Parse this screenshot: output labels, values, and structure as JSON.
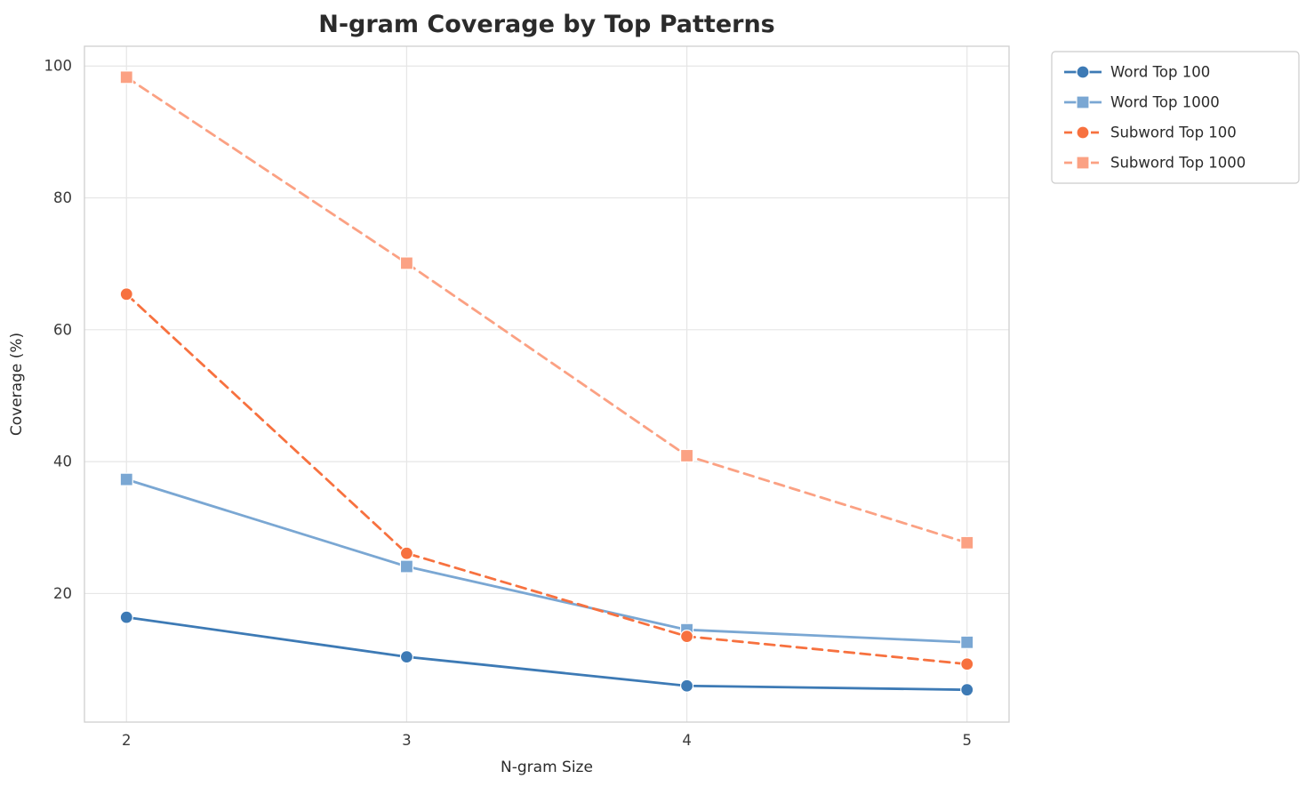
{
  "chart_data": {
    "type": "line",
    "title": "N-gram Coverage by Top Patterns",
    "xlabel": "N-gram Size",
    "ylabel": "Coverage (%)",
    "x": [
      2,
      3,
      4,
      5
    ],
    "xticks": [
      2,
      3,
      4,
      5
    ],
    "yticks": [
      20,
      40,
      60,
      80,
      100
    ],
    "xlim": [
      1.85,
      5.15
    ],
    "ylim": [
      0.5,
      103
    ],
    "grid": true,
    "legend_position": "outside-top-right",
    "series": [
      {
        "name": "Word Top 100",
        "values": [
          16.4,
          10.4,
          6.0,
          5.4
        ],
        "color": "#3d7ab5",
        "marker": "circle",
        "dash": "solid"
      },
      {
        "name": "Word Top 1000",
        "values": [
          37.3,
          24.1,
          14.5,
          12.6
        ],
        "color": "#7aa7d3",
        "marker": "square",
        "dash": "solid"
      },
      {
        "name": "Subword Top 100",
        "values": [
          65.4,
          26.1,
          13.5,
          9.3
        ],
        "color": "#f7713f",
        "marker": "circle",
        "dash": "dashed"
      },
      {
        "name": "Subword Top 1000",
        "values": [
          98.3,
          70.1,
          40.9,
          27.7
        ],
        "color": "#fba183",
        "marker": "square",
        "dash": "dashed"
      }
    ]
  }
}
